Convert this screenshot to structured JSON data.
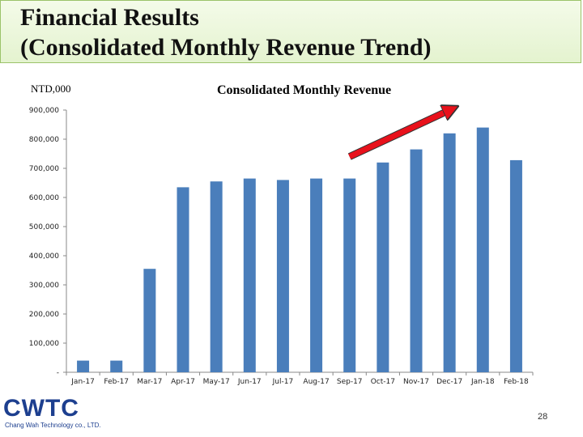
{
  "slide": {
    "title_line1": "Financial Results",
    "title_line2": "(Consolidated Monthly Revenue Trend)",
    "page_number": "28"
  },
  "logo": {
    "name": "CWTC",
    "subtitle": "Chang Wah Technology co., LTD."
  },
  "chart_data": {
    "type": "bar",
    "title": "Consolidated Monthly Revenue",
    "unit_label": "NTD,000",
    "categories": [
      "Jan-17",
      "Feb-17",
      "Mar-17",
      "Apr-17",
      "May-17",
      "Jun-17",
      "Jul-17",
      "Aug-17",
      "Sep-17",
      "Oct-17",
      "Nov-17",
      "Dec-17",
      "Jan-18",
      "Feb-18"
    ],
    "values": [
      40000,
      40000,
      355000,
      635000,
      655000,
      665000,
      660000,
      665000,
      665000,
      720000,
      765000,
      820000,
      840000,
      728000
    ],
    "ylim": [
      0,
      900000
    ],
    "yticks": [
      "-",
      "100,000",
      "200,000",
      "300,000",
      "400,000",
      "500,000",
      "600,000",
      "700,000",
      "800,000",
      "900,000"
    ],
    "bar_color": "#4a7ebb",
    "trend_arrow_color": "#e8111b",
    "grid": false
  }
}
